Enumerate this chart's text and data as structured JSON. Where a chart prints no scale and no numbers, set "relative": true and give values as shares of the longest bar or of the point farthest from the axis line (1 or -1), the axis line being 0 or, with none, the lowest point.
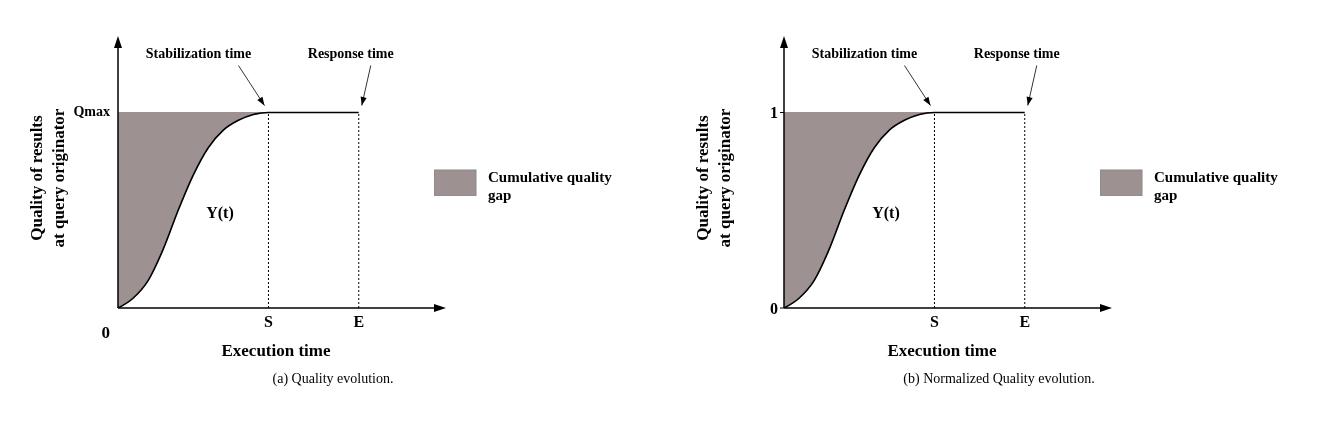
{
  "chart_data": [
    {
      "type": "line",
      "title": "(a) Quality evolution.",
      "xlabel": "Execution time",
      "ylabel": "Quality of results\nat query originator",
      "categories": [
        null,
        null,
        null,
        null,
        null,
        null,
        null,
        null,
        null,
        null,
        "S",
        null,
        null,
        null,
        null,
        null,
        "E",
        null,
        null,
        null,
        null,
        null
      ],
      "relative": true,
      "grid": false,
      "legend": "right",
      "marker": "none",
      "series": [
        {
          "name": "Y(t)",
          "color": "#000000",
          "values": [
            0,
            0.05,
            0.14,
            0.3,
            0.5,
            0.68,
            0.82,
            0.91,
            0.96,
            0.99,
            1,
            1,
            1,
            1,
            1,
            1,
            1,
            null,
            null,
            null,
            null,
            null
          ]
        },
        {
          "type": "area",
          "name": "Cumulative quality gap",
          "color": "#9d9191",
          "values": [
            1,
            1,
            1,
            1,
            1,
            1,
            1,
            1,
            1,
            1,
            1,
            null,
            null,
            null,
            null,
            null,
            null,
            null,
            null,
            null,
            null,
            null
          ]
        }
      ],
      "ref_lines": [
        {
          "axis": "x",
          "value": "S",
          "line_style": "dotted"
        },
        {
          "axis": "x",
          "value": "E",
          "line_style": "dotted"
        }
      ],
      "annotations": [
        {
          "text": "Stabilization time",
          "x": "S",
          "y": 1
        },
        {
          "text": "Response time",
          "x": "E",
          "y": 1
        },
        "Qmax",
        "0"
      ]
    },
    {
      "type": "line",
      "title": "(b) Normalized Quality evolution.",
      "xlabel": "Execution time",
      "ylabel": "Quality of results\nat query originator",
      "categories": [
        null,
        null,
        null,
        null,
        null,
        null,
        null,
        null,
        null,
        null,
        "S",
        null,
        null,
        null,
        null,
        null,
        "E",
        null,
        null,
        null,
        null,
        null
      ],
      "ylim": [
        0,
        1.33
      ],
      "yticks": [
        0,
        1
      ],
      "grid": false,
      "legend": "right",
      "marker": "none",
      "series": [
        {
          "name": "Y(t)",
          "color": "#000000",
          "values": [
            0,
            0.05,
            0.14,
            0.3,
            0.5,
            0.68,
            0.82,
            0.91,
            0.96,
            0.99,
            1,
            1,
            1,
            1,
            1,
            1,
            1,
            null,
            null,
            null,
            null,
            null
          ]
        },
        {
          "type": "area",
          "name": "Cumulative quality gap",
          "color": "#9d9191",
          "values": [
            1,
            1,
            1,
            1,
            1,
            1,
            1,
            1,
            1,
            1,
            1,
            null,
            null,
            null,
            null,
            null,
            null,
            null,
            null,
            null,
            null,
            null
          ]
        }
      ],
      "ref_lines": [
        {
          "axis": "x",
          "value": "S",
          "line_style": "dotted"
        },
        {
          "axis": "x",
          "value": "E",
          "line_style": "dotted"
        }
      ],
      "annotations": [
        {
          "text": "Stabilization time",
          "x": "S",
          "y": 1
        },
        {
          "text": "Response time",
          "x": "E",
          "y": 1
        }
      ]
    }
  ]
}
